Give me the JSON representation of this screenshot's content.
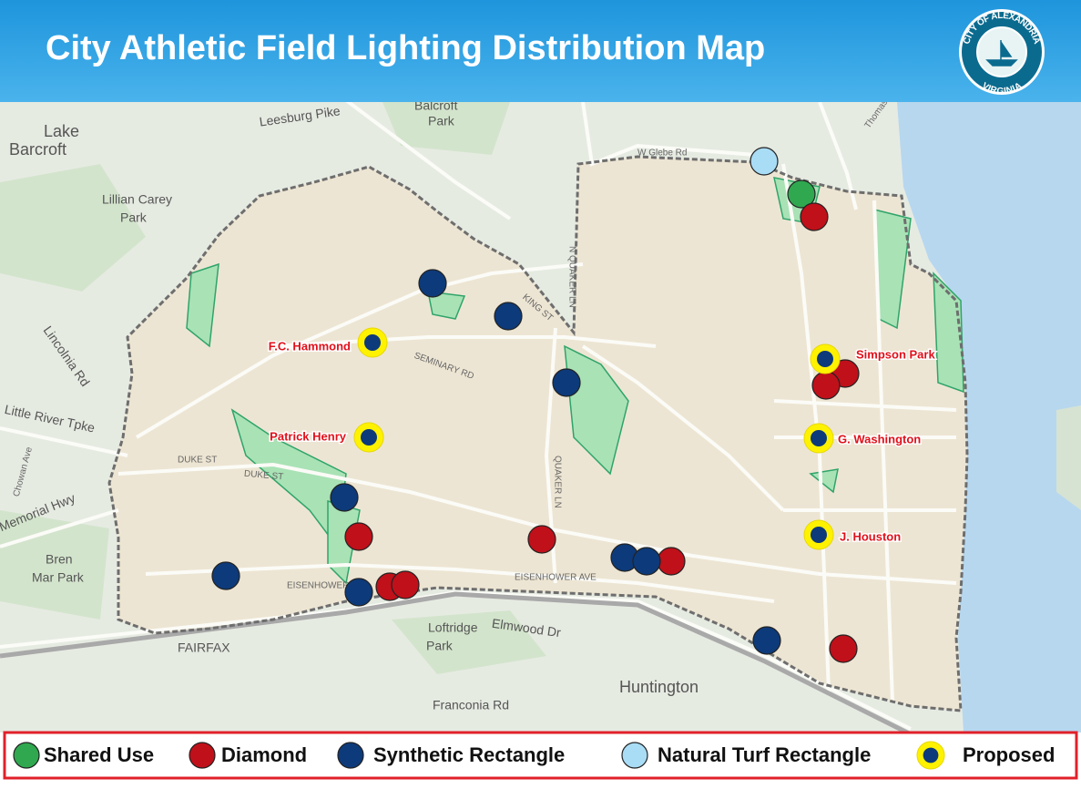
{
  "header": {
    "title": "City Athletic Field Lighting Distribution Map",
    "seal_top": "CITY OF ALEXANDRIA",
    "seal_bottom": "VIRGINIA"
  },
  "map": {
    "place_labels": [
      "Lake",
      "Barcroft",
      "Lillian Carey",
      "Park",
      "Bren",
      "Mar Park",
      "Loftridge",
      "Park",
      "Huntington",
      "Balcroft",
      "Park"
    ],
    "road_labels": [
      "Leesburg Pike",
      "Lincolnia Rd",
      "Little River Tpke",
      "Memorial Hwy",
      "FAIRFAX",
      "Elmwood Dr",
      "Franconia Rd",
      "DUKE ST",
      "DUKE ST",
      "EISENHOWER AVE",
      "EISENHOWER AVE",
      "SEMINARY RD",
      "KING ST",
      "N QUAKER LN",
      "QUAKER LN",
      "W Glebe Rd",
      "Thomas Ave",
      "Chowan Ave"
    ],
    "field_labels": [
      "F.C. Hammond",
      "Patrick Henry",
      "Simpson Park",
      "G. Washington",
      "J. Houston"
    ]
  },
  "legend": [
    {
      "label": "Shared Use",
      "color": "#2fa84f"
    },
    {
      "label": "Diamond",
      "color": "#c0101a"
    },
    {
      "label": "Synthetic Rectangle",
      "color": "#0d3a7a"
    },
    {
      "label": "Natural Turf Rectangle",
      "color": "#a9dcf5"
    },
    {
      "label": "Proposed",
      "color": "#fff200"
    }
  ]
}
